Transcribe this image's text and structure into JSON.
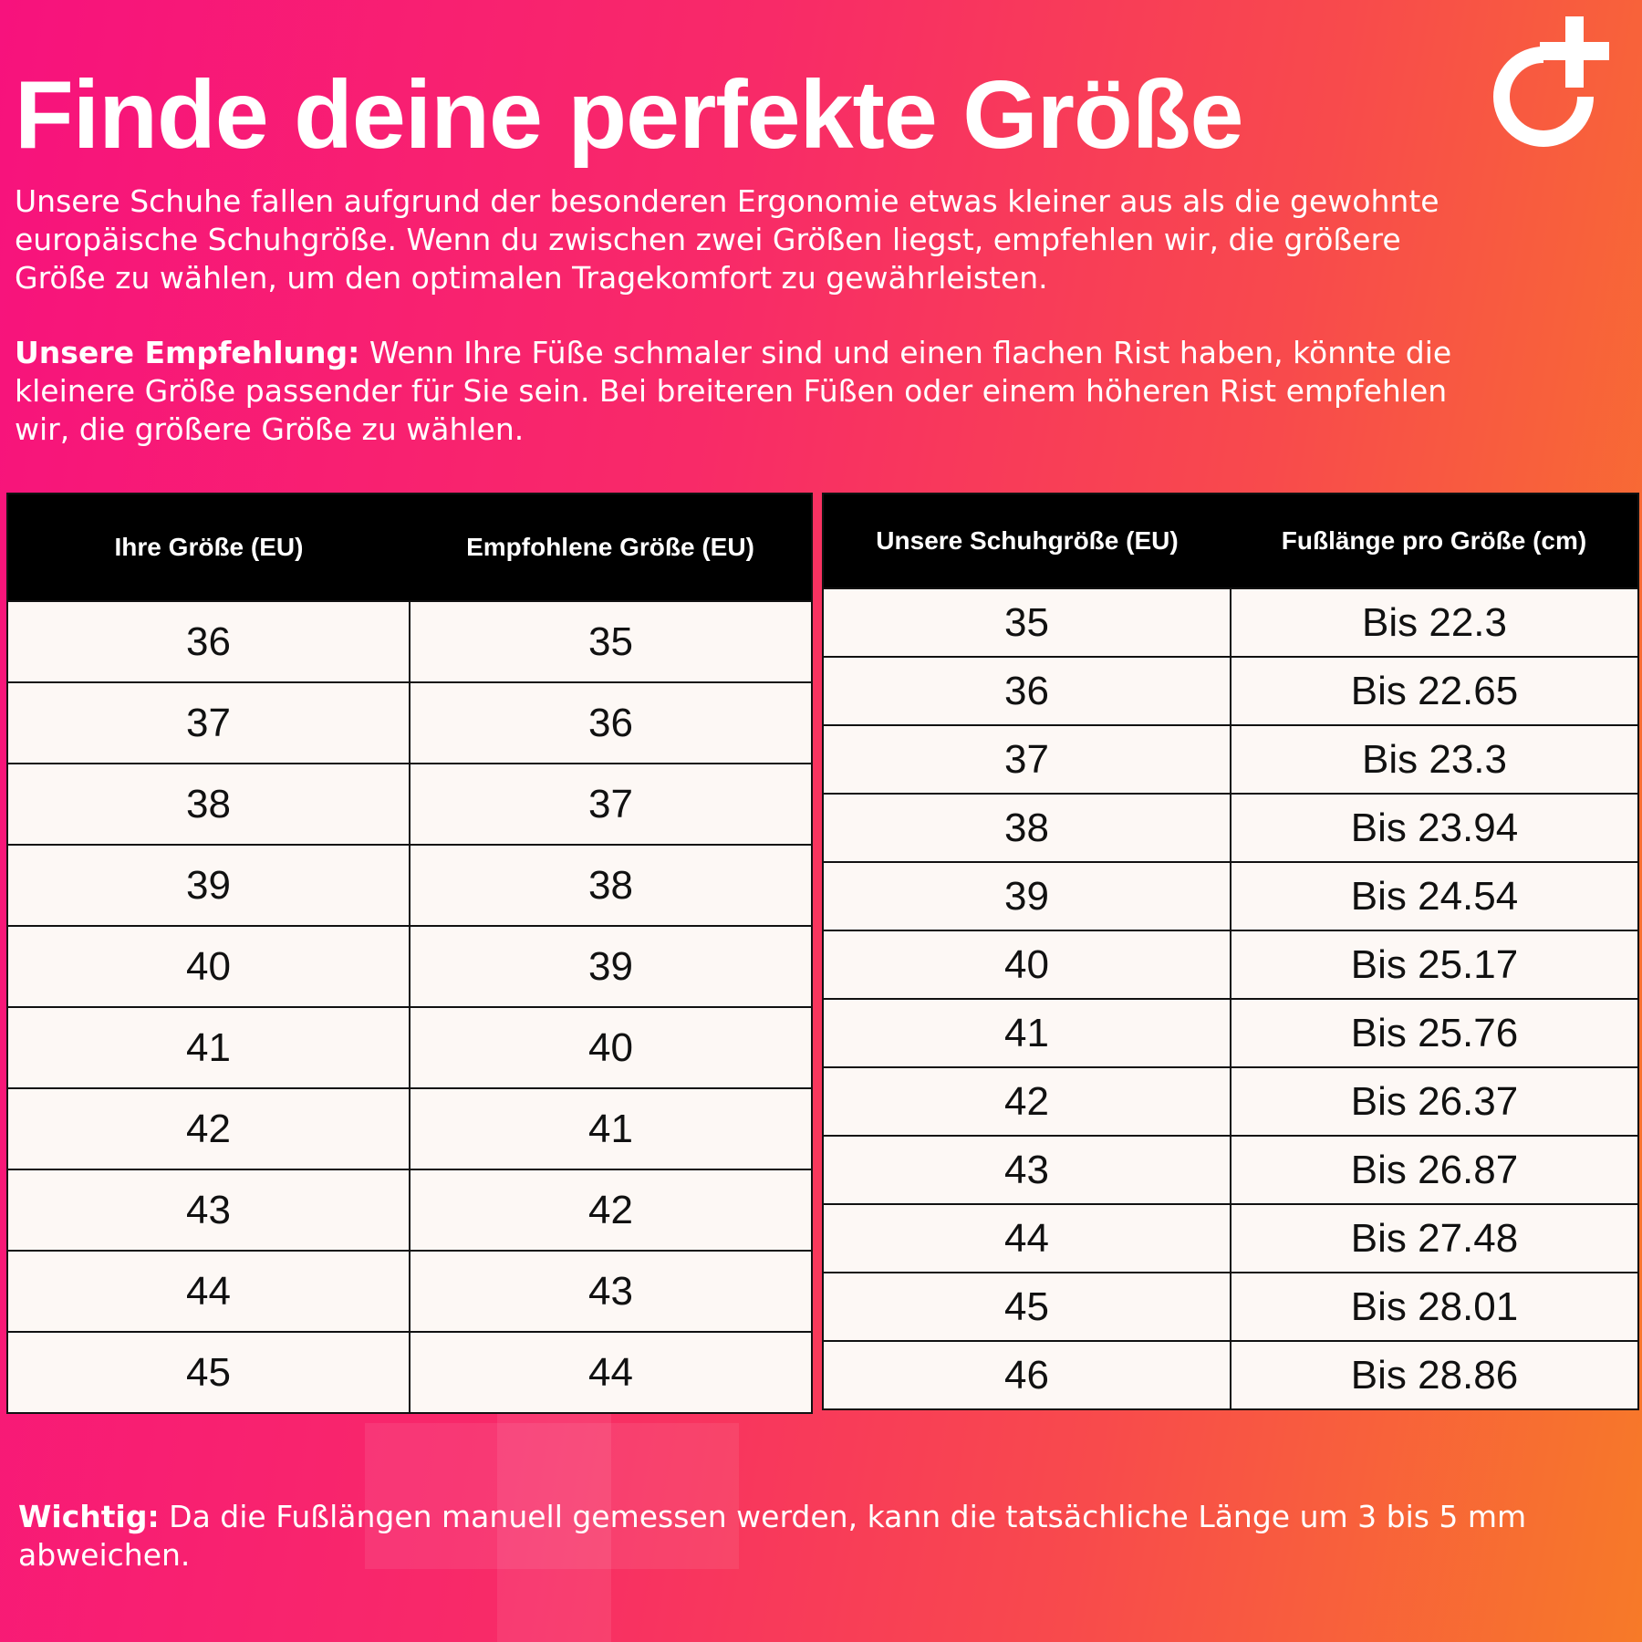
{
  "title": "Finde deine perfekte Größe",
  "intro_lines": [
    "Unsere Schuhe fallen aufgrund der besonderen Ergonomie etwas kleiner aus als die gewohnte",
    "europäische Schuhgröße. Wenn du zwischen zwei Größen liegst, empfehlen wir, die größere",
    "Größe zu wählen, um den optimalen Tragekomfort zu gewährleisten."
  ],
  "recommendation": {
    "label": "Unsere Empfehlung:",
    "lines": [
      " Wenn Ihre Füße schmaler sind und einen flachen Rist haben, könnte die",
      "kleinere Größe passender für Sie sein. Bei breiteren Füßen oder einem höheren Rist empfehlen",
      "wir, die größere Größe zu wählen."
    ]
  },
  "table_left": {
    "headers": [
      "Ihre Größe (EU)",
      "Empfohlene Größe (EU)"
    ],
    "rows": [
      [
        "36",
        "35"
      ],
      [
        "37",
        "36"
      ],
      [
        "38",
        "37"
      ],
      [
        "39",
        "38"
      ],
      [
        "40",
        "39"
      ],
      [
        "41",
        "40"
      ],
      [
        "42",
        "41"
      ],
      [
        "43",
        "42"
      ],
      [
        "44",
        "43"
      ],
      [
        "45",
        "44"
      ]
    ]
  },
  "table_right": {
    "headers": [
      "Unsere Schuhgröße (EU)",
      "Fußlänge pro Größe (cm)"
    ],
    "rows": [
      [
        "35",
        "Bis 22.3"
      ],
      [
        "36",
        "Bis 22.65"
      ],
      [
        "37",
        "Bis 23.3"
      ],
      [
        "38",
        "Bis 23.94"
      ],
      [
        "39",
        "Bis 24.54"
      ],
      [
        "40",
        "Bis 25.17"
      ],
      [
        "41",
        "Bis 25.76"
      ],
      [
        "42",
        "Bis 26.37"
      ],
      [
        "43",
        "Bis 26.87"
      ],
      [
        "44",
        "Bis 27.48"
      ],
      [
        "45",
        "Bis 28.01"
      ],
      [
        "46",
        "Bis 28.86"
      ]
    ]
  },
  "note": {
    "label": "Wichtig:",
    "lines": [
      " Da die Fußlängen manuell gemessen werden, kann die tatsächliche Länge um 3 bis 5 mm",
      "abweichen."
    ]
  },
  "colors": {
    "gradient_left": "#f7127d",
    "gradient_right": "#f77a28",
    "header_bg": "#000000",
    "cell_bg": "#fdf8f5"
  },
  "logo_icon": "circle-plus-logo"
}
